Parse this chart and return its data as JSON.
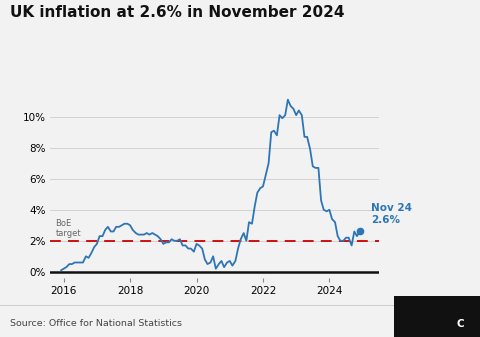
{
  "title": "UK inflation at 2.6% in November 2024",
  "source_text": "Source: Office for National Statistics",
  "boe_target": 2.0,
  "boe_label": "BoE\ntarget",
  "annotation_label": "Nov 24\n2.6%",
  "line_color": "#2e75b6",
  "dashed_color": "#cc0000",
  "background_color": "#f2f2f2",
  "ylabel_ticks": [
    0,
    2,
    4,
    6,
    8,
    10
  ],
  "ylabel_labels": [
    "0%",
    "2%",
    "4%",
    "6%",
    "8%",
    "10%"
  ],
  "xlim_start": 2015.6,
  "xlim_end": 2025.5,
  "ylim": [
    -0.4,
    12.2
  ],
  "data": [
    [
      2015.92,
      0.1
    ],
    [
      2016.0,
      0.2
    ],
    [
      2016.08,
      0.3
    ],
    [
      2016.17,
      0.5
    ],
    [
      2016.25,
      0.5
    ],
    [
      2016.33,
      0.6
    ],
    [
      2016.42,
      0.6
    ],
    [
      2016.5,
      0.6
    ],
    [
      2016.58,
      0.6
    ],
    [
      2016.67,
      1.0
    ],
    [
      2016.75,
      0.9
    ],
    [
      2016.83,
      1.2
    ],
    [
      2016.92,
      1.6
    ],
    [
      2017.0,
      1.8
    ],
    [
      2017.08,
      2.3
    ],
    [
      2017.17,
      2.3
    ],
    [
      2017.25,
      2.7
    ],
    [
      2017.33,
      2.9
    ],
    [
      2017.42,
      2.6
    ],
    [
      2017.5,
      2.6
    ],
    [
      2017.58,
      2.9
    ],
    [
      2017.67,
      2.9
    ],
    [
      2017.75,
      3.0
    ],
    [
      2017.83,
      3.1
    ],
    [
      2017.92,
      3.1
    ],
    [
      2018.0,
      3.0
    ],
    [
      2018.08,
      2.7
    ],
    [
      2018.17,
      2.5
    ],
    [
      2018.25,
      2.4
    ],
    [
      2018.33,
      2.4
    ],
    [
      2018.42,
      2.4
    ],
    [
      2018.5,
      2.5
    ],
    [
      2018.58,
      2.4
    ],
    [
      2018.67,
      2.5
    ],
    [
      2018.75,
      2.4
    ],
    [
      2018.83,
      2.3
    ],
    [
      2018.92,
      2.1
    ],
    [
      2019.0,
      1.8
    ],
    [
      2019.08,
      1.9
    ],
    [
      2019.17,
      1.9
    ],
    [
      2019.25,
      2.1
    ],
    [
      2019.33,
      2.0
    ],
    [
      2019.42,
      2.0
    ],
    [
      2019.5,
      2.1
    ],
    [
      2019.58,
      1.7
    ],
    [
      2019.67,
      1.7
    ],
    [
      2019.75,
      1.5
    ],
    [
      2019.83,
      1.5
    ],
    [
      2019.92,
      1.3
    ],
    [
      2020.0,
      1.8
    ],
    [
      2020.08,
      1.7
    ],
    [
      2020.17,
      1.5
    ],
    [
      2020.25,
      0.8
    ],
    [
      2020.33,
      0.5
    ],
    [
      2020.42,
      0.6
    ],
    [
      2020.5,
      1.0
    ],
    [
      2020.58,
      0.2
    ],
    [
      2020.67,
      0.5
    ],
    [
      2020.75,
      0.7
    ],
    [
      2020.83,
      0.3
    ],
    [
      2020.92,
      0.6
    ],
    [
      2021.0,
      0.7
    ],
    [
      2021.08,
      0.4
    ],
    [
      2021.17,
      0.7
    ],
    [
      2021.25,
      1.5
    ],
    [
      2021.33,
      2.1
    ],
    [
      2021.42,
      2.5
    ],
    [
      2021.5,
      2.0
    ],
    [
      2021.58,
      3.2
    ],
    [
      2021.67,
      3.1
    ],
    [
      2021.75,
      4.2
    ],
    [
      2021.83,
      5.1
    ],
    [
      2021.92,
      5.4
    ],
    [
      2022.0,
      5.5
    ],
    [
      2022.08,
      6.2
    ],
    [
      2022.17,
      7.0
    ],
    [
      2022.25,
      9.0
    ],
    [
      2022.33,
      9.1
    ],
    [
      2022.42,
      8.8
    ],
    [
      2022.5,
      10.1
    ],
    [
      2022.58,
      9.9
    ],
    [
      2022.67,
      10.1
    ],
    [
      2022.75,
      11.1
    ],
    [
      2022.83,
      10.7
    ],
    [
      2022.92,
      10.5
    ],
    [
      2023.0,
      10.1
    ],
    [
      2023.08,
      10.4
    ],
    [
      2023.17,
      10.1
    ],
    [
      2023.25,
      8.7
    ],
    [
      2023.33,
      8.7
    ],
    [
      2023.42,
      7.9
    ],
    [
      2023.5,
      6.8
    ],
    [
      2023.58,
      6.7
    ],
    [
      2023.67,
      6.7
    ],
    [
      2023.75,
      4.6
    ],
    [
      2023.83,
      4.0
    ],
    [
      2023.92,
      3.9
    ],
    [
      2024.0,
      4.0
    ],
    [
      2024.08,
      3.4
    ],
    [
      2024.17,
      3.2
    ],
    [
      2024.25,
      2.3
    ],
    [
      2024.33,
      2.0
    ],
    [
      2024.42,
      2.0
    ],
    [
      2024.5,
      2.2
    ],
    [
      2024.58,
      2.2
    ],
    [
      2024.67,
      1.7
    ],
    [
      2024.75,
      2.6
    ],
    [
      2024.83,
      2.3
    ],
    [
      2024.92,
      2.6
    ]
  ]
}
